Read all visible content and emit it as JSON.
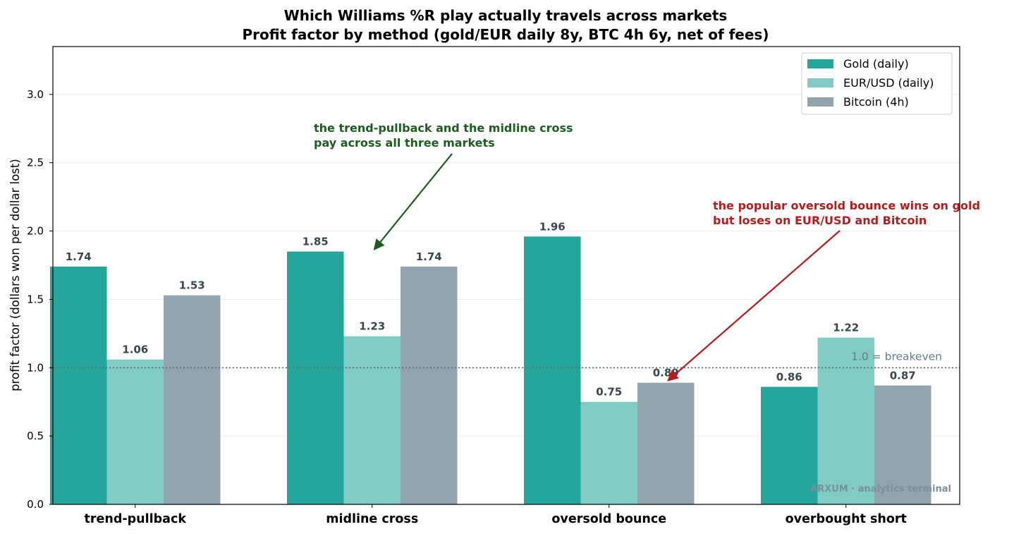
{
  "chart_data": {
    "type": "bar",
    "title_lines": [
      "Which Williams %R play actually travels across markets",
      "Profit factor by method (gold/EUR daily 8y, BTC 4h 6y, net of fees)"
    ],
    "xlabel": "",
    "ylabel": "profit factor (dollars won per dollar lost)",
    "ylim": [
      0,
      3.35
    ],
    "yticks": [
      0.0,
      0.5,
      1.0,
      1.5,
      2.0,
      2.5,
      3.0
    ],
    "ytick_labels": [
      "0.0",
      "0.5",
      "1.0",
      "1.5",
      "2.0",
      "2.5",
      "3.0"
    ],
    "grid": "horizontal",
    "legend_position": "top-right",
    "categories": [
      "trend-pullback",
      "midline cross",
      "oversold bounce",
      "overbought short"
    ],
    "series": [
      {
        "name": "Gold (daily)",
        "color": "#26a69a",
        "values": [
          1.74,
          1.85,
          1.96,
          0.86
        ],
        "labels": [
          "1.74",
          "1.85",
          "1.96",
          "0.86"
        ]
      },
      {
        "name": "EUR/USD (daily)",
        "color": "#80cbc4",
        "values": [
          1.06,
          1.23,
          0.75,
          1.22
        ],
        "labels": [
          "1.06",
          "1.23",
          "0.75",
          "1.22"
        ]
      },
      {
        "name": "Bitcoin (4h)",
        "color": "#90a4ae",
        "values": [
          1.53,
          1.74,
          0.89,
          0.87
        ],
        "labels": [
          "1.53",
          "1.74",
          "0.89",
          "0.87"
        ]
      }
    ],
    "reference_line": {
      "y": 1.0,
      "label": "1.0 = breakeven",
      "color": "#546e7a"
    },
    "annotations": [
      {
        "lines": [
          "the trend-pullback and the midline cross",
          "pay across all three markets"
        ],
        "color": "#1b5e20",
        "arrow_target": {
          "category": "midline cross",
          "y": 1.86
        }
      },
      {
        "lines": [
          "the popular oversold bounce wins on gold",
          "but loses on EUR/USD and Bitcoin"
        ],
        "color": "#b71c1c",
        "arrow_target": {
          "category": "oversold bounce",
          "series": "Bitcoin (4h)",
          "y": 0.89
        }
      }
    ],
    "watermark": "ARXUM · analytics terminal"
  }
}
